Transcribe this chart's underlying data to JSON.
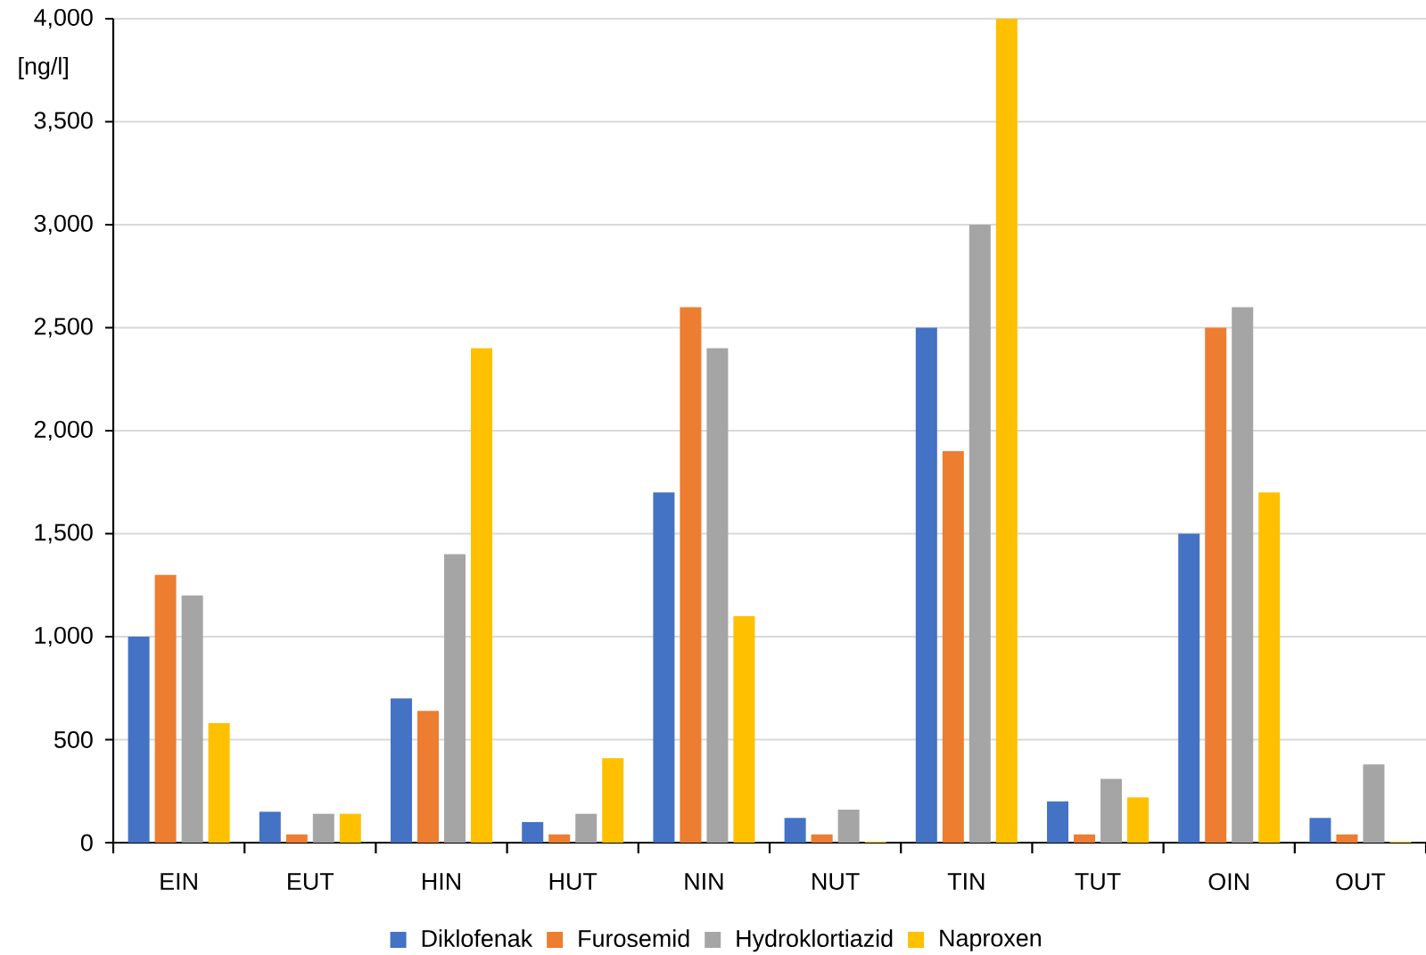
{
  "chart_data": {
    "type": "bar",
    "ylabel": "[ng/l]",
    "categories": [
      "EIN",
      "EUT",
      "HIN",
      "HUT",
      "NIN",
      "NUT",
      "TIN",
      "TUT",
      "OIN",
      "OUT"
    ],
    "series": [
      {
        "name": "Diklofenak",
        "color": "#4472c4",
        "values": [
          1000,
          150,
          700,
          100,
          1700,
          120,
          2500,
          200,
          1500,
          120
        ]
      },
      {
        "name": "Furosemid",
        "color": "#ed7d31",
        "values": [
          1300,
          40,
          640,
          40,
          2600,
          40,
          1900,
          40,
          2500,
          40
        ]
      },
      {
        "name": "Hydroklortiazid",
        "color": "#a5a5a5",
        "values": [
          1200,
          140,
          1400,
          140,
          2400,
          160,
          3000,
          310,
          2600,
          380
        ]
      },
      {
        "name": "Naproxen",
        "color": "#ffc000",
        "values": [
          580,
          140,
          2400,
          410,
          1100,
          5,
          4000,
          220,
          1700,
          5
        ]
      }
    ],
    "ylim": [
      0,
      4000
    ],
    "yticks": [
      0,
      500,
      {
        "value": 1000,
        "label": "1,000"
      },
      {
        "value": 1500,
        "label": "1,500"
      },
      {
        "value": 2000,
        "label": "2,000"
      },
      {
        "value": 2500,
        "label": "2,500"
      },
      {
        "value": 3000,
        "label": "3,000"
      },
      {
        "value": 3500,
        "label": "3,500"
      },
      {
        "value": 4000,
        "label": "4,000"
      }
    ],
    "grid": "y",
    "legend": "bottom"
  }
}
